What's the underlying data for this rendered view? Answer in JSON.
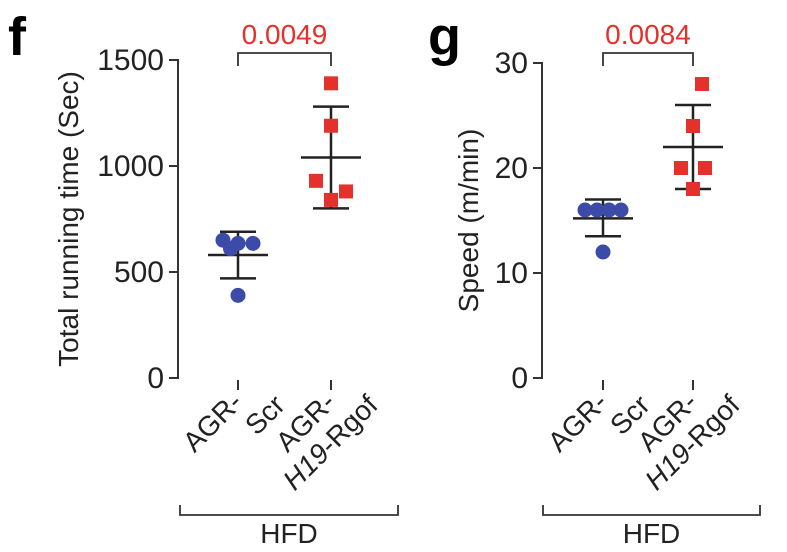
{
  "colors": {
    "group1": "#3c4aa8",
    "group2": "#e4312b",
    "pvalue": "#e4312b"
  },
  "chart_data": [
    {
      "type": "scatter",
      "panel": "f",
      "ylabel": "Total running time (Sec)",
      "ylim": [
        0,
        1500
      ],
      "yticks": [
        0,
        500,
        1000,
        1500
      ],
      "group_label": "HFD",
      "pvalue": "0.0049",
      "categories": [
        {
          "line1": "AGR-",
          "line2_prefix": "",
          "line2_italic": "Scr",
          "line2_italic_flag": false,
          "line2_suffix": ""
        },
        {
          "line1": "AGR-",
          "line2_prefix": "",
          "line2_italic": "H19",
          "line2_italic_flag": true,
          "line2_suffix": "-Rgof"
        }
      ],
      "series": [
        {
          "shape": "circle",
          "color_key": "group1",
          "mean": 580,
          "sd_low": 470,
          "sd_high": 690,
          "points": [
            {
              "dx": -0.5,
              "y": 650
            },
            {
              "dx": 0,
              "y": 635
            },
            {
              "dx": 0.5,
              "y": 635
            },
            {
              "dx": -0.25,
              "y": 610
            },
            {
              "dx": 0,
              "y": 390
            }
          ]
        },
        {
          "shape": "square",
          "color_key": "group2",
          "mean": 1040,
          "sd_low": 800,
          "sd_high": 1280,
          "points": [
            {
              "dx": 0,
              "y": 1390
            },
            {
              "dx": 0,
              "y": 1190
            },
            {
              "dx": -0.5,
              "y": 930
            },
            {
              "dx": 0.5,
              "y": 880
            },
            {
              "dx": 0,
              "y": 840
            }
          ]
        }
      ]
    },
    {
      "type": "scatter",
      "panel": "g",
      "ylabel": "Speed (m/min)",
      "ylim": [
        0,
        30
      ],
      "yticks": [
        0,
        10,
        20,
        30
      ],
      "group_label": "HFD",
      "pvalue": "0.0084",
      "categories": [
        {
          "line1": "AGR-",
          "line2_prefix": "",
          "line2_italic": "Scr",
          "line2_italic_flag": false,
          "line2_suffix": ""
        },
        {
          "line1": "AGR-",
          "line2_prefix": "",
          "line2_italic": "H19",
          "line2_italic_flag": true,
          "line2_suffix": "-Rgof"
        }
      ],
      "series": [
        {
          "shape": "circle",
          "color_key": "group1",
          "mean": 15.2,
          "sd_low": 13.5,
          "sd_high": 17,
          "points": [
            {
              "dx": -0.6,
              "y": 16
            },
            {
              "dx": -0.2,
              "y": 16
            },
            {
              "dx": 0.2,
              "y": 16
            },
            {
              "dx": 0.6,
              "y": 16
            },
            {
              "dx": 0,
              "y": 12
            }
          ]
        },
        {
          "shape": "square",
          "color_key": "group2",
          "mean": 22,
          "sd_low": 18,
          "sd_high": 26,
          "points": [
            {
              "dx": 0.3,
              "y": 28
            },
            {
              "dx": 0,
              "y": 24
            },
            {
              "dx": -0.4,
              "y": 20
            },
            {
              "dx": 0.4,
              "y": 20
            },
            {
              "dx": 0,
              "y": 18
            }
          ]
        }
      ]
    }
  ]
}
